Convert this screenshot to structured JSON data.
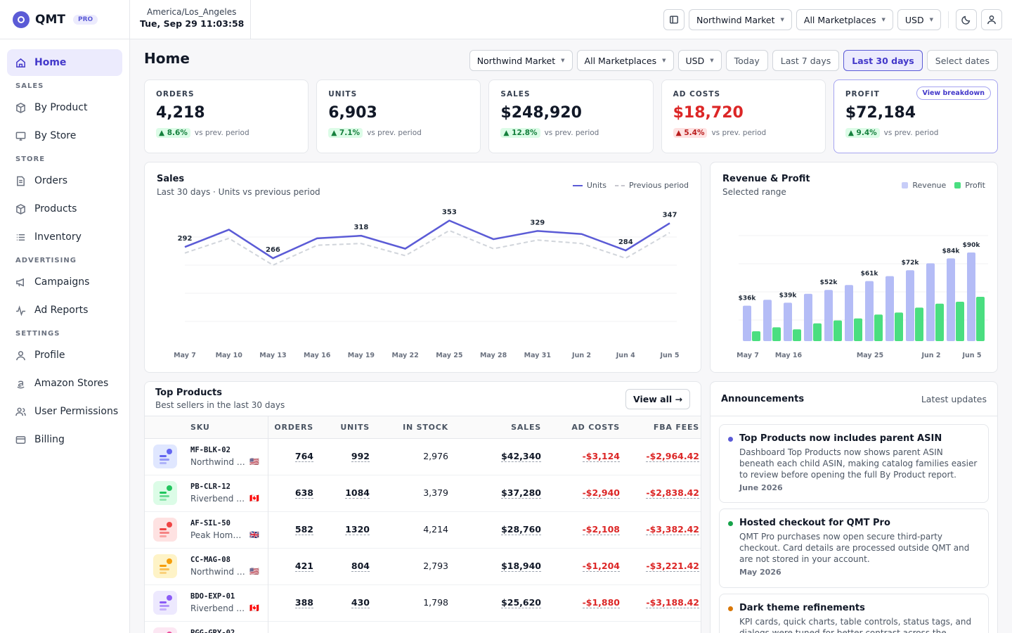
{
  "app": {
    "name": "QMT",
    "badge": "PRO"
  },
  "topbar": {
    "tz": "America/Los_Angeles",
    "time": "Tue, Sep 29 11:03:58",
    "store": "Northwind Market",
    "marketplace": "All Marketplaces",
    "currency": "USD"
  },
  "sidebar": {
    "home": "Home",
    "sales_section": "SALES",
    "by_product": "By Product",
    "by_store": "By Store",
    "store_section": "STORE",
    "orders": "Orders",
    "products": "Products",
    "inventory": "Inventory",
    "adv_section": "ADVERTISING",
    "campaigns": "Campaigns",
    "ad_reports": "Ad Reports",
    "settings_section": "SETTINGS",
    "profile": "Profile",
    "amazon_stores": "Amazon Stores",
    "user_permissions": "User Permissions",
    "billing": "Billing"
  },
  "page": {
    "title": "Home",
    "store": "Northwind Market",
    "marketplace": "All Marketplaces",
    "currency": "USD",
    "ranges": [
      "Today",
      "Last 7 days",
      "Last 30 days",
      "Select dates"
    ],
    "active_range": "Last 30 days"
  },
  "kpis": [
    {
      "label": "ORDERS",
      "value": "4,218",
      "delta": "▲ 8.6%",
      "dir": "up",
      "note": "vs prev. period"
    },
    {
      "label": "UNITS",
      "value": "6,903",
      "delta": "▲ 7.1%",
      "dir": "up",
      "note": "vs prev. period"
    },
    {
      "label": "SALES",
      "value": "$248,920",
      "delta": "▲ 12.8%",
      "dir": "up",
      "note": "vs prev. period"
    },
    {
      "label": "AD COSTS",
      "value": "$18,720",
      "delta": "▲ 5.4%",
      "dir": "bad",
      "note": "vs prev. period"
    },
    {
      "label": "PROFIT",
      "value": "$72,184",
      "delta": "▲ 9.4%",
      "dir": "up",
      "note": "vs prev. period",
      "action": "View breakdown"
    }
  ],
  "sales_chart": {
    "title": "Sales",
    "subtitle": "Last 30 days · Units vs previous period",
    "legend_units": "Units",
    "legend_prev": "Previous period"
  },
  "revenue_chart": {
    "title": "Revenue & Profit",
    "subtitle": "Selected range",
    "legend_revenue": "Revenue",
    "legend_profit": "Profit"
  },
  "chart_data": [
    {
      "type": "line",
      "title": "Sales",
      "x": [
        "May 7",
        "May 10",
        "May 13",
        "May 16",
        "May 19",
        "May 22",
        "May 25",
        "May 28",
        "May 31",
        "Jun 2",
        "Jun 4",
        "Jun 5"
      ],
      "x_ticks": [
        "May 7",
        "May 10",
        "May 13",
        "May 16",
        "May 19",
        "May 22",
        "May 25",
        "May 28",
        "May 31",
        "Jun 2",
        "Jun 4",
        "Jun 5"
      ],
      "series": [
        {
          "name": "Units",
          "values": [
            292,
            332,
            266,
            312,
            318,
            288,
            353,
            310,
            329,
            322,
            284,
            347
          ],
          "labels": [
            "292",
            "",
            "266",
            "",
            "318",
            "",
            "353",
            "",
            "329",
            "",
            "284",
            "347"
          ]
        },
        {
          "name": "Previous period",
          "values": [
            278,
            312,
            250,
            296,
            300,
            272,
            330,
            288,
            308,
            300,
            266,
            325
          ]
        }
      ],
      "ylim": [
        120,
        380
      ],
      "color_units": "#5b5bd6",
      "color_prev": "#d1d5db"
    },
    {
      "type": "bar",
      "title": "Revenue & Profit",
      "categories": [
        "May 7",
        "",
        "May 16",
        "",
        "",
        "",
        "May 25",
        "",
        "",
        "Jun 2",
        "",
        "Jun 5"
      ],
      "series": [
        {
          "name": "Revenue",
          "values": [
            36,
            42,
            39,
            48,
            52,
            57,
            61,
            66,
            72,
            79,
            84,
            90
          ],
          "labels": [
            "$36k",
            "",
            "$39k",
            "",
            "$52k",
            "",
            "$61k",
            "",
            "$72k",
            "",
            "$84k",
            "$90k"
          ]
        },
        {
          "name": "Profit",
          "values": [
            10,
            14,
            12,
            18,
            21,
            23,
            27,
            29,
            34,
            38,
            40,
            45
          ]
        }
      ],
      "ylim": [
        0,
        100
      ],
      "color_revenue": "#b4bcf6",
      "color_profit": "#4ade80"
    }
  ],
  "products": {
    "title": "Top Products",
    "subtitle": "Best sellers in the last 30 days",
    "view_all": "View all →",
    "columns": [
      "SKU",
      "ORDERS",
      "UNITS",
      "IN STOCK",
      "SALES",
      "AD COSTS",
      "FBA FEES"
    ],
    "rows": [
      {
        "sku": "MF-BLK-02",
        "store": "Northwind Market",
        "flag": "🇺🇸",
        "orders": "764",
        "units": "992",
        "stock": "2,976",
        "sales": "$42,340",
        "ad": "-$3,124",
        "fba": "-$2,964.42",
        "bg": "#e0e7ff",
        "c1": "#6366f1"
      },
      {
        "sku": "PB-CLR-12",
        "store": "Riverbend Supply",
        "flag": "🇨🇦",
        "orders": "638",
        "units": "1084",
        "stock": "3,379",
        "sales": "$37,280",
        "ad": "-$2,940",
        "fba": "-$2,838.42",
        "bg": "#dcfce7",
        "c1": "#22c55e"
      },
      {
        "sku": "AF-SIL-50",
        "store": "Peak Home Goods",
        "flag": "🇬🇧",
        "orders": "582",
        "units": "1320",
        "stock": "4,214",
        "sales": "$28,760",
        "ad": "-$2,108",
        "fba": "-$3,382.42",
        "bg": "#fee2e2",
        "c1": "#ef4444"
      },
      {
        "sku": "CC-MAG-08",
        "store": "Northwind Market",
        "flag": "🇺🇸",
        "orders": "421",
        "units": "804",
        "stock": "2,793",
        "sales": "$18,940",
        "ad": "-$1,204",
        "fba": "-$3,221.42",
        "bg": "#fef3c7",
        "c1": "#f59e0b"
      },
      {
        "sku": "BDO-EXP-01",
        "store": "Riverbend Supply",
        "flag": "🇨🇦",
        "orders": "388",
        "units": "430",
        "stock": "1,798",
        "sales": "$25,620",
        "ad": "-$1,880",
        "fba": "-$3,188.42",
        "bg": "#ede9fe",
        "c1": "#8b5cf6"
      },
      {
        "sku": "PGG-GRY-02",
        "store": "",
        "flag": "",
        "orders": "",
        "units": "",
        "stock": "",
        "sales": "",
        "ad": "",
        "fba": "",
        "bg": "#fce7f3",
        "c1": "#ec4899"
      }
    ]
  },
  "announcements": {
    "title": "Announcements",
    "link": "Latest updates",
    "items": [
      {
        "title": "Top Products now includes parent ASIN",
        "desc": "Dashboard Top Products now shows parent ASIN beneath each child ASIN, making catalog families easier to review before opening the full By Product report.",
        "date": "June 2026",
        "color": "#5b5bd6"
      },
      {
        "title": "Hosted checkout for QMT Pro",
        "desc": "QMT Pro purchases now open secure third-party checkout. Card details are processed outside QMT and are not stored in your account.",
        "date": "May 2026",
        "color": "#16a34a"
      },
      {
        "title": "Dark theme refinements",
        "desc": "KPI cards, quick charts, table controls, status tags, and dialogs were tuned for better contrast across the English",
        "date": "",
        "color": "#d97706"
      }
    ]
  }
}
